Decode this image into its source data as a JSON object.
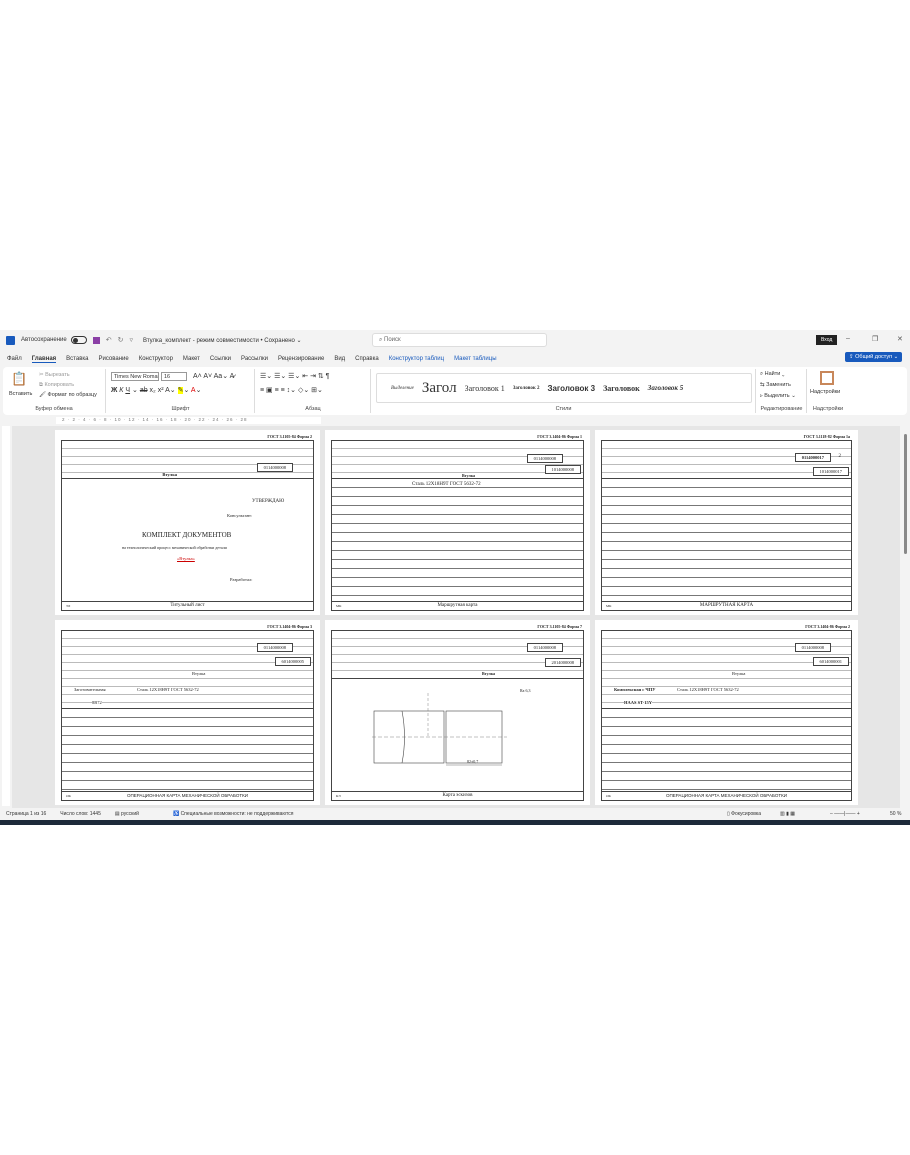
{
  "titlebar": {
    "autosave": "Автосохранение",
    "title": "Втулка_комплект - режим совместимости • Сохранено ⌄",
    "search_placeholder": "Поиск",
    "signin": "Вход"
  },
  "menu": [
    "Файл",
    "Главная",
    "Вставка",
    "Рисование",
    "Конструктор",
    "Макет",
    "Ссылки",
    "Рассылки",
    "Рецензирование",
    "Вид",
    "Справка",
    "Конструктор таблиц",
    "Макет таблицы"
  ],
  "share": "Общий доступ",
  "ribbon": {
    "clipboard": {
      "paste": "Вставить",
      "cut": "Вырезать",
      "copy": "Копировать",
      "format": "Формат по образцу",
      "label": "Буфер обмена"
    },
    "font": {
      "name": "Times New Roman",
      "size": "16",
      "label": "Шрифт"
    },
    "paragraph": {
      "label": "Абзац"
    },
    "styles": {
      "items": [
        "Выделение",
        "Загол",
        "Заголовок 1",
        "Заголовок 2",
        "Заголовок 3",
        "Заголовок",
        "Заголовок 5"
      ],
      "label": "Стили"
    },
    "editing": {
      "find": "Найти",
      "replace": "Заменить",
      "select": "Выделить",
      "label": "Редактирование"
    },
    "addins": {
      "button": "Надстройки",
      "label": "Надстройки"
    }
  },
  "ruler": "2 · 2 · 4 · 6 · 8 · 10 · 12 · 14 · 16 · 18 · 20 · 22 · 24 · 26 · 28",
  "pages": [
    {
      "gost": "ГОСТ 3.1105-84   Форма 2",
      "code": "0114000008",
      "name": "Втулка",
      "footer": "Титульный лист",
      "num": "ТЛ",
      "approve": "УТВЕРЖДАЮ",
      "consultant": "Консультант:",
      "title": "КОМПЛЕКТ ДОКУМЕНТОВ",
      "subtitle": "на технологический процесс механической обработки детали",
      "part": "«Втулка»",
      "developer": "Разработал:"
    },
    {
      "gost": "ГОСТ 3.1404-86   Форма 1",
      "code": "0114000008",
      "code2": "1014000008",
      "name": "Втулка",
      "material": "Сталь 12Х18Н9Т ГОСТ 5632-72",
      "footer": "Маршрутная карта",
      "num": "МК"
    },
    {
      "gost": "ГОСТ 3.1118-82   Форма 1а",
      "code": "0114000017",
      "code2": "1014000017",
      "sheet": "2",
      "footer": "МАРШРУТНАЯ КАРТА",
      "num": "МК"
    },
    {
      "gost": "ГОСТ 3.1404-86   Форма 3",
      "code": "0114000008",
      "code2": "6014000005",
      "name": "Втулка",
      "op": "Заготовительная",
      "material": "Сталь 12Х18Н9Т ГОСТ 5632-72",
      "equip": "8В72",
      "footer": "ОПЕРАЦИОННАЯ КАРТА МЕХАНИЧЕСКОЙ ОБРАБОТКИ",
      "num": "ОК"
    },
    {
      "gost": "ГОСТ 3.1105-84   Форма 7",
      "code": "0114000008",
      "code2": "2014000008",
      "name": "Втулка",
      "rough": "Ra 6,3",
      "dim": "82±0,7",
      "footer": "Карта эскизов",
      "num": "КЭ"
    },
    {
      "gost": "ГОСТ 3.1404-86   Форма 2",
      "code": "0114000008",
      "code2": "6014000001",
      "name": "Втулка",
      "op": "Комплексная с ЧПУ",
      "material": "Сталь 12Х18Н9Т ГОСТ 5632-72",
      "equip": "HAAS ST-15Y",
      "footer": "ОПЕРАЦИОННАЯ КАРТА МЕХАНИЧЕСКОЙ ОБРАБОТКИ",
      "num": "ОК"
    }
  ],
  "status": {
    "page": "Страница 1 из 16",
    "words": "Число слов: 1445",
    "lang": "русский",
    "access": "Специальные возможности: не поддерживаются",
    "focus": "Фокусировка",
    "zoom": "50 %"
  }
}
